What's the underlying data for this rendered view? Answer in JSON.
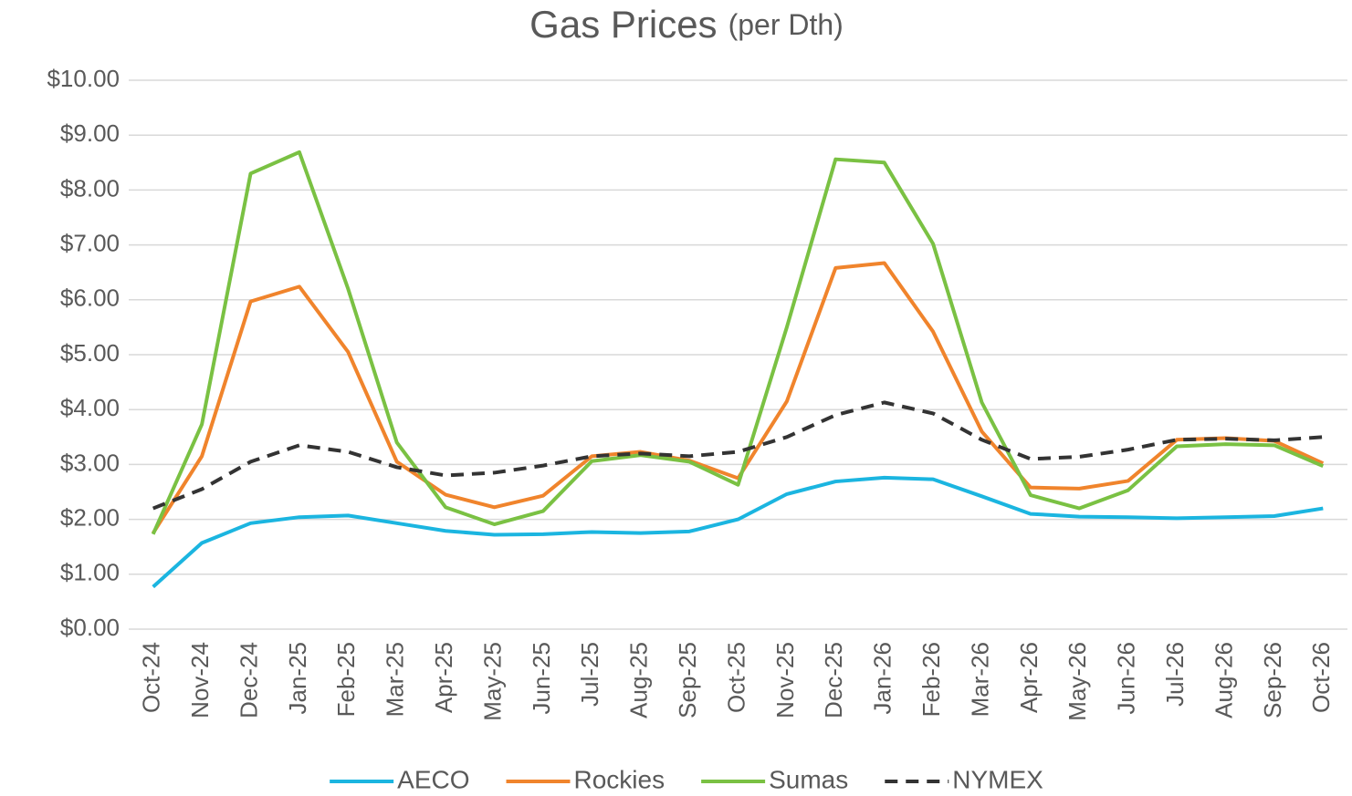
{
  "chart_data": {
    "type": "line",
    "title": "Gas Prices",
    "subtitle": "(per Dth)",
    "categories": [
      "Oct-24",
      "Nov-24",
      "Dec-24",
      "Jan-25",
      "Feb-25",
      "Mar-25",
      "Apr-25",
      "May-25",
      "Jun-25",
      "Jul-25",
      "Aug-25",
      "Sep-25",
      "Oct-25",
      "Nov-25",
      "Dec-25",
      "Jan-26",
      "Feb-26",
      "Mar-26",
      "Apr-26",
      "May-26",
      "Jun-26",
      "Jul-26",
      "Aug-26",
      "Sep-26",
      "Oct-26"
    ],
    "series": [
      {
        "name": "AECO",
        "color": "#1bb5e0",
        "dashed": false,
        "values": [
          0.77,
          1.57,
          1.93,
          2.04,
          2.07,
          1.93,
          1.79,
          1.72,
          1.73,
          1.77,
          1.75,
          1.78,
          2.0,
          2.46,
          2.69,
          2.76,
          2.73,
          2.42,
          2.1,
          2.05,
          2.04,
          2.02,
          2.04,
          2.06,
          2.2
        ]
      },
      {
        "name": "Rockies",
        "color": "#f0842c",
        "dashed": false,
        "values": [
          1.75,
          3.15,
          5.97,
          6.24,
          5.05,
          3.05,
          2.45,
          2.22,
          2.43,
          3.15,
          3.23,
          3.07,
          2.75,
          4.15,
          6.58,
          6.67,
          5.42,
          3.6,
          2.58,
          2.56,
          2.7,
          3.45,
          3.48,
          3.43,
          3.02
        ]
      },
      {
        "name": "Sumas",
        "color": "#7ac143",
        "dashed": false,
        "values": [
          1.73,
          3.73,
          8.3,
          8.69,
          6.2,
          3.4,
          2.22,
          1.91,
          2.15,
          3.06,
          3.17,
          3.05,
          2.63,
          5.5,
          8.56,
          8.5,
          7.02,
          4.13,
          2.44,
          2.2,
          2.53,
          3.33,
          3.37,
          3.35,
          2.97
        ]
      },
      {
        "name": "NYMEX",
        "color": "#333333",
        "dashed": true,
        "values": [
          2.2,
          2.55,
          3.05,
          3.35,
          3.23,
          2.95,
          2.8,
          2.85,
          2.98,
          3.15,
          3.2,
          3.15,
          3.23,
          3.5,
          3.9,
          4.13,
          3.93,
          3.45,
          3.1,
          3.14,
          3.27,
          3.45,
          3.47,
          3.44,
          3.5
        ]
      }
    ],
    "ylim": [
      0,
      10
    ],
    "yticks": [
      {
        "value": 0,
        "label": "$0.00"
      },
      {
        "value": 1,
        "label": "$1.00"
      },
      {
        "value": 2,
        "label": "$2.00"
      },
      {
        "value": 3,
        "label": "$3.00"
      },
      {
        "value": 4,
        "label": "$4.00"
      },
      {
        "value": 5,
        "label": "$5.00"
      },
      {
        "value": 6,
        "label": "$6.00"
      },
      {
        "value": 7,
        "label": "$7.00"
      },
      {
        "value": 8,
        "label": "$8.00"
      },
      {
        "value": 9,
        "label": "$9.00"
      },
      {
        "value": 10,
        "label": "$10.00"
      }
    ],
    "grid": true,
    "legend": "bottom"
  }
}
